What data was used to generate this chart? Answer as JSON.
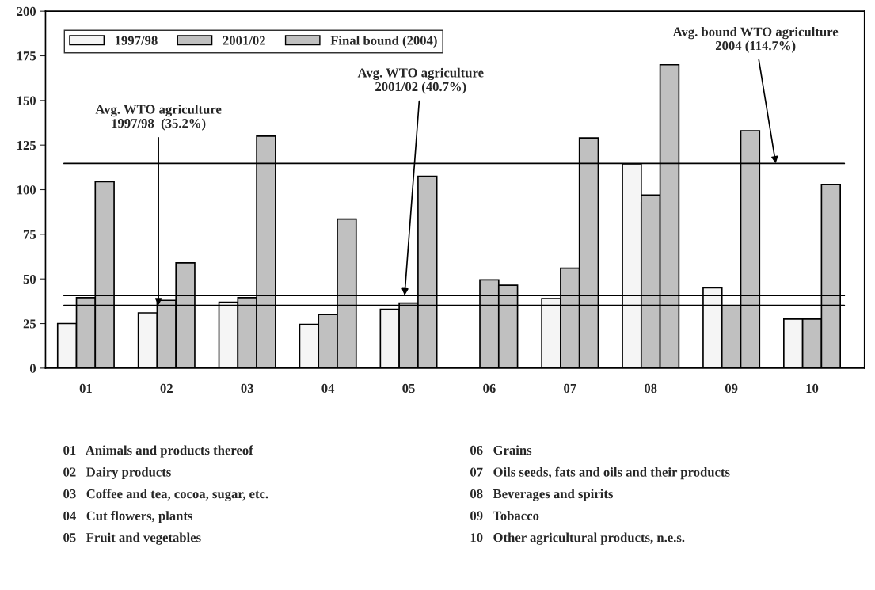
{
  "chart_data": {
    "type": "bar",
    "categories": [
      "01",
      "02",
      "03",
      "04",
      "05",
      "06",
      "07",
      "08",
      "09",
      "10"
    ],
    "series": [
      {
        "name": "1997/98",
        "color": "#f5f5f5",
        "values": [
          25,
          31,
          37,
          24.5,
          33,
          null,
          39,
          114.5,
          45,
          27.5
        ]
      },
      {
        "name": "2001/02",
        "color": "#c0c0c0",
        "values": [
          39.5,
          38,
          39.5,
          30,
          36.5,
          49.5,
          56,
          97,
          35,
          27.5
        ]
      },
      {
        "name": "Final bound (2004)",
        "color": "#c0c0c0",
        "values": [
          104.5,
          59,
          130,
          83.5,
          107.5,
          46.5,
          129,
          170,
          133,
          103
        ]
      }
    ],
    "ylim": [
      0,
      200
    ],
    "yticks": [
      0,
      25,
      50,
      75,
      100,
      125,
      150,
      175,
      200
    ],
    "legend": "top left",
    "grid": false,
    "ref_lines": [
      {
        "axis": "y",
        "value": 35.2,
        "label": "Avg. WTO agriculture\n1997/98  (35.2%)",
        "color": "#000000"
      },
      {
        "axis": "y",
        "value": 40.7,
        "label": "Avg. WTO agriculture\n2001/02 (40.7%)",
        "color": "#000000"
      },
      {
        "axis": "y",
        "value": 114.7,
        "label": "Avg. bound WTO agriculture\n2004 (114.7%)",
        "color": "#000000"
      }
    ],
    "annotations": [
      "01   Animals and products thereof",
      "02   Dairy products",
      "03   Coffee and tea, cocoa, sugar, etc.",
      "04   Cut flowers, plants",
      "05   Fruit and vegetables",
      "06   Grains",
      "07   Oils seeds, fats and oils and their products",
      "08   Beverages and spirits",
      "09   Tobacco",
      "10   Other agricultural products, n.e.s."
    ]
  }
}
